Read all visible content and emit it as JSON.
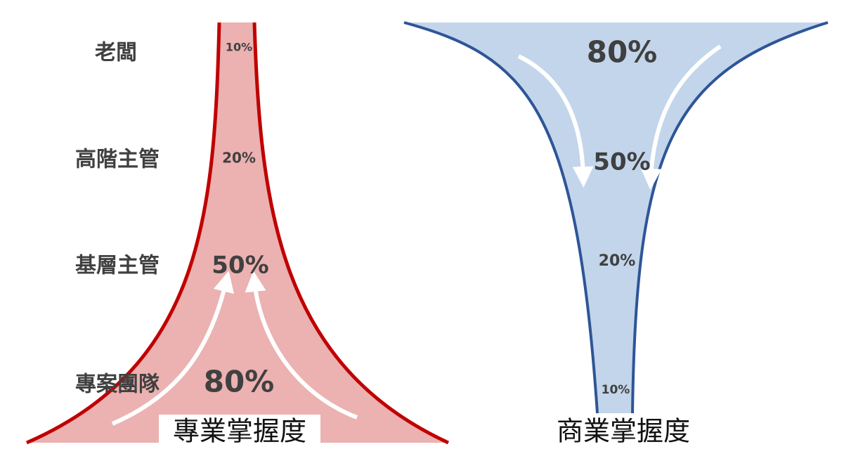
{
  "levels": [
    "老闆",
    "高階主管",
    "基層主管",
    "專案團隊"
  ],
  "left_funnel": {
    "labels": [
      "10%",
      "20%",
      "50%",
      "80%"
    ],
    "caption": "專業掌握度"
  },
  "right_funnel": {
    "labels": [
      "80%",
      "50%",
      "20%",
      "10%"
    ],
    "caption": "商業掌握度"
  }
}
